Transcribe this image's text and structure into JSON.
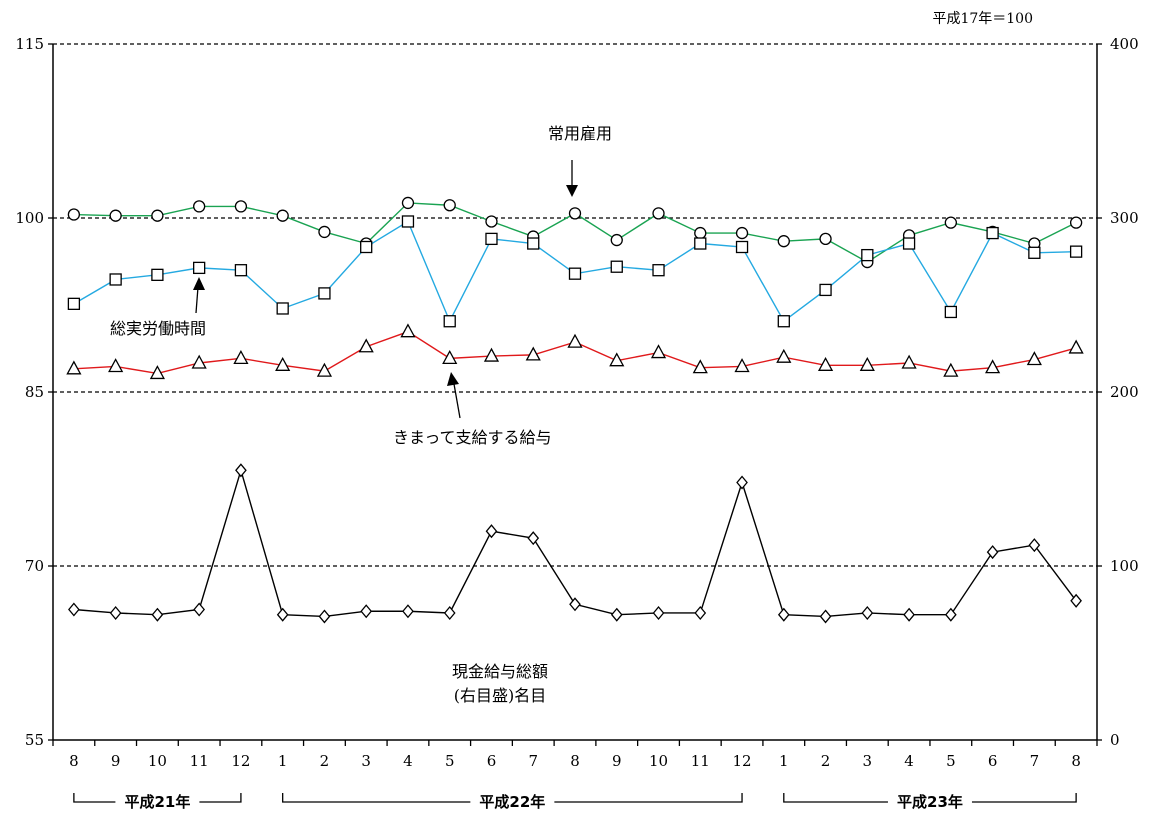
{
  "chart_data": {
    "type": "line",
    "base_note": "平成17年＝100",
    "x": [
      "8",
      "9",
      "10",
      "11",
      "12",
      "1",
      "2",
      "3",
      "4",
      "5",
      "6",
      "7",
      "8",
      "9",
      "10",
      "11",
      "12",
      "1",
      "2",
      "3",
      "4",
      "5",
      "6",
      "7",
      "8"
    ],
    "year_groups": [
      {
        "label": "平成21年",
        "from": 0,
        "to": 4
      },
      {
        "label": "平成22年",
        "from": 5,
        "to": 16
      },
      {
        "label": "平成23年",
        "from": 17,
        "to": 24
      }
    ],
    "y_left": {
      "ylim": [
        55,
        115
      ],
      "ticks": [
        55,
        70,
        85,
        100,
        115
      ]
    },
    "y_right": {
      "ylim": [
        0,
        400
      ],
      "ticks": [
        0,
        100,
        200,
        300,
        400
      ]
    },
    "grid_dashed_at": [
      70,
      85,
      100,
      115
    ],
    "series": [
      {
        "name": "常用雇用",
        "axis": "left",
        "marker": "circle",
        "color": "#1aa352",
        "values": [
          100.3,
          100.2,
          100.2,
          101.0,
          101.0,
          100.2,
          98.8,
          97.8,
          101.3,
          101.1,
          99.7,
          98.4,
          100.4,
          98.1,
          100.4,
          98.7,
          98.7,
          98.0,
          98.2,
          96.2,
          98.5,
          99.6,
          98.8,
          97.8,
          99.6
        ]
      },
      {
        "name": "総実労働時間",
        "axis": "left",
        "marker": "square",
        "color": "#24a9e1",
        "values": [
          92.6,
          94.7,
          95.1,
          95.7,
          95.5,
          92.2,
          93.5,
          97.5,
          99.7,
          91.1,
          98.2,
          97.8,
          95.2,
          95.8,
          95.5,
          97.8,
          97.5,
          91.1,
          93.8,
          96.8,
          97.8,
          91.9,
          98.7,
          97.0,
          97.1
        ]
      },
      {
        "name": "きまって支給する給与",
        "axis": "left",
        "marker": "triangle",
        "color": "#e0191b",
        "values": [
          87.0,
          87.2,
          86.6,
          87.5,
          87.9,
          87.3,
          86.8,
          88.9,
          90.2,
          87.9,
          88.1,
          88.2,
          89.3,
          87.7,
          88.4,
          87.1,
          87.2,
          88.0,
          87.3,
          87.3,
          87.5,
          86.8,
          87.1,
          87.8,
          88.8
        ]
      },
      {
        "name": "現金給与総額",
        "axis": "right",
        "marker": "diamond",
        "color": "#000000",
        "values": [
          75,
          73,
          72,
          75,
          155,
          72,
          71,
          74,
          74,
          73,
          120,
          116,
          78,
          72,
          73,
          73,
          148,
          72,
          71,
          73,
          72,
          72,
          108,
          112,
          80
        ]
      }
    ],
    "annotations": [
      {
        "text": "常用雇用"
      },
      {
        "text": "総実労働時間"
      },
      {
        "text": "きまって支給する給与"
      },
      {
        "text": "現金給与総額"
      },
      {
        "text": "(右目盛)名目"
      }
    ]
  }
}
